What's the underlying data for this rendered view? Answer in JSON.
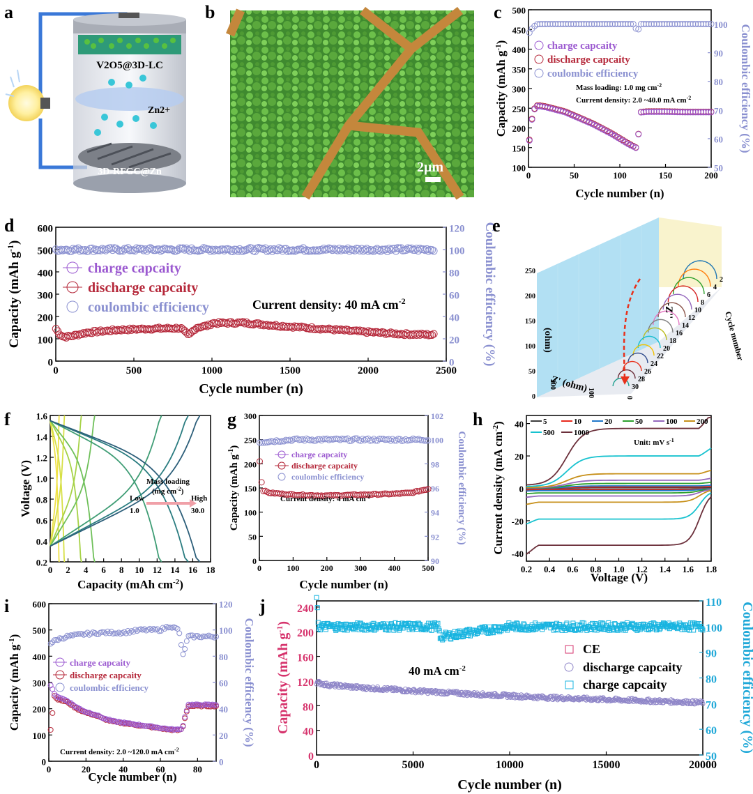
{
  "figure": {
    "panel_labels": [
      "a",
      "b",
      "c",
      "d",
      "e",
      "f",
      "g",
      "h",
      "i",
      "j"
    ]
  },
  "panel_a": {
    "cathode_label": "V2O5@3D-LC",
    "ion_label": "Zn2+",
    "anode_label": "3D-RFGC@Zn"
  },
  "panel_b": {
    "scale_label": "2μm"
  },
  "panel_e": {
    "z2_label": "-Z''",
    "z2_unit": "(ohm)",
    "z1_label": "Z' (ohm)",
    "cycle_label": "Cycle number",
    "ticks_z2": [
      "0",
      "50",
      "100",
      "150",
      "200",
      "250"
    ],
    "ticks_z1": [
      "0",
      "100",
      "200"
    ],
    "ticks_cycle": [
      "2",
      "4",
      "6",
      "8",
      "10",
      "12",
      "14",
      "16",
      "18",
      "20",
      "22",
      "24",
      "26",
      "28",
      "30"
    ]
  },
  "chart_data": [
    {
      "panel": "c",
      "type": "scatter",
      "xlabel": "Cycle number (n)",
      "ylabel": "Capacity (mAh g-1)",
      "ylabel2": "Coulombic efficiency (%)",
      "xlim": [
        0,
        200
      ],
      "ylim": [
        100,
        500
      ],
      "ylim2": [
        50,
        105
      ],
      "x_ticks": [
        "0",
        "50",
        "100",
        "150",
        "200"
      ],
      "y_ticks": [
        "100",
        "150",
        "200",
        "250",
        "300",
        "350",
        "400",
        "450",
        "500"
      ],
      "y2_ticks": [
        "50",
        "60",
        "70",
        "80",
        "90",
        "100"
      ],
      "legend": [
        "charge capcaity",
        "discharge capcaity",
        "coulombic efficiency"
      ],
      "annotations": [
        "Mass loading: 1.0 mg cm-2",
        "Current density: 2.0 ~40.0 mA cm-2"
      ],
      "series": [
        {
          "name": "discharge capcaity",
          "x": [
            1,
            5,
            10,
            15,
            20,
            30,
            40,
            50,
            60,
            70,
            80,
            90,
            100,
            110,
            118,
            120,
            121,
            130,
            150,
            170,
            200
          ],
          "y": [
            170,
            245,
            258,
            256,
            254,
            248,
            242,
            232,
            222,
            212,
            200,
            188,
            174,
            160,
            150,
            148,
            240,
            242,
            242,
            241,
            241
          ]
        },
        {
          "name": "charge capcaity",
          "x": [
            1,
            5,
            10,
            15,
            20,
            30,
            40,
            50,
            60,
            70,
            80,
            90,
            100,
            110,
            118,
            120,
            121,
            130,
            150,
            170,
            200
          ],
          "y": [
            168,
            243,
            256,
            254,
            252,
            246,
            240,
            230,
            220,
            210,
            198,
            186,
            172,
            158,
            149,
            147,
            239,
            241,
            241,
            240,
            240
          ]
        },
        {
          "name": "coulombic efficiency",
          "x": [
            1,
            5,
            10,
            20,
            50,
            80,
            100,
            115,
            120,
            121,
            125,
            150,
            200
          ],
          "y": [
            97,
            99,
            100,
            100,
            100,
            100,
            100,
            100,
            97,
            100,
            100,
            100,
            100
          ]
        }
      ]
    },
    {
      "panel": "d",
      "type": "scatter",
      "xlabel": "Cycle number (n)",
      "ylabel": "Capacity (mAh g-1)",
      "ylabel2": "Coulombic efficiency (%)",
      "xlim": [
        0,
        2500
      ],
      "ylim": [
        0,
        600
      ],
      "ylim2": [
        0,
        120
      ],
      "x_ticks": [
        "0",
        "500",
        "1000",
        "1500",
        "2000",
        "2500"
      ],
      "y_ticks": [
        "0",
        "100",
        "200",
        "300",
        "400",
        "500",
        "600"
      ],
      "y2_ticks": [
        "0",
        "20",
        "40",
        "60",
        "80",
        "100",
        "120"
      ],
      "legend": [
        "charge capcaity",
        "discharge capcaity",
        "coulombic efficiency"
      ],
      "annotations": [
        "Current density: 40 mA cm-2"
      ],
      "series": [
        {
          "name": "discharge capcaity",
          "x": [
            1,
            20,
            50,
            100,
            200,
            400,
            600,
            800,
            850,
            900,
            980,
            1000,
            1200,
            1400,
            1600,
            1800,
            2000,
            2200,
            2420
          ],
          "y": [
            145,
            125,
            108,
            112,
            128,
            140,
            145,
            148,
            115,
            150,
            160,
            170,
            172,
            160,
            150,
            140,
            130,
            122,
            118
          ]
        },
        {
          "name": "coulombic efficiency",
          "x": [
            1,
            500,
            1000,
            1500,
            2000,
            2420
          ],
          "y": [
            100,
            100,
            100,
            100,
            100,
            100
          ]
        }
      ]
    },
    {
      "panel": "f",
      "type": "line",
      "xlabel": "Capacity (mAh cm-2)",
      "ylabel": "Voltage (V)",
      "xlim": [
        0,
        18
      ],
      "ylim": [
        0.2,
        1.6
      ],
      "x_ticks": [
        "0",
        "2",
        "4",
        "6",
        "8",
        "10",
        "12",
        "14",
        "16",
        "18"
      ],
      "y_ticks": [
        "0.2",
        "0.4",
        "0.6",
        "0.8",
        "1.0",
        "1.2",
        "1.4",
        "1.6"
      ],
      "annotations": [
        "Mass loading",
        "(mg cm-2)",
        "Low",
        "1.0",
        "High",
        "30.0"
      ],
      "series": [
        {
          "name": "1.0",
          "capacity": 1.0
        },
        {
          "name": "2",
          "capacity": 1.6
        },
        {
          "name": "3",
          "capacity": 3.5
        },
        {
          "name": "4",
          "capacity": 5.0
        },
        {
          "name": "5",
          "capacity": 12.5
        },
        {
          "name": "6",
          "capacity": 15.5
        },
        {
          "name": "30.0",
          "capacity": 16.8
        }
      ]
    },
    {
      "panel": "g",
      "type": "scatter",
      "xlabel": "Cycle number (n)",
      "ylabel": "Capacity (mAh g-1)",
      "ylabel2": "Coulombic efficiency (%)",
      "xlim": [
        0,
        500
      ],
      "ylim": [
        0,
        300
      ],
      "ylim2": [
        90,
        102
      ],
      "x_ticks": [
        "0",
        "100",
        "200",
        "300",
        "400",
        "500"
      ],
      "y_ticks": [
        "0",
        "50",
        "100",
        "150",
        "200",
        "250",
        "300"
      ],
      "y2_ticks": [
        "90",
        "92",
        "94",
        "96",
        "98",
        "100",
        "102"
      ],
      "legend": [
        "charge capcaity",
        "discharge capcaity",
        "coulombic efficiency"
      ],
      "annotations": [
        "Current density: 4 mA cm-2"
      ],
      "series": [
        {
          "name": "discharge capcaity",
          "x": [
            1,
            5,
            10,
            30,
            100,
            200,
            300,
            400,
            450,
            500
          ],
          "y": [
            205,
            170,
            145,
            140,
            136,
            134,
            136,
            138,
            140,
            148
          ]
        },
        {
          "name": "coulombic efficiency",
          "x": [
            1,
            100,
            200,
            300,
            400,
            500
          ],
          "y": [
            99.8,
            100,
            100,
            100,
            100,
            100
          ]
        }
      ]
    },
    {
      "panel": "h",
      "type": "line",
      "xlabel": "Voltage (V)",
      "ylabel": "Current density (mA cm-2)",
      "xlim": [
        0.2,
        1.8
      ],
      "ylim": [
        -45,
        45
      ],
      "x_ticks": [
        "0.2",
        "0.4",
        "0.6",
        "0.8",
        "1.0",
        "1.2",
        "1.4",
        "1.6",
        "1.8"
      ],
      "y_ticks": [
        "-40",
        "-20",
        "0",
        "20",
        "40"
      ],
      "legend_unit": "Unit: mV s-1",
      "series": [
        {
          "name": "5",
          "color": "#3c3c3c",
          "scale": 0.5
        },
        {
          "name": "10",
          "color": "#e8291c",
          "scale": 0.9
        },
        {
          "name": "20",
          "color": "#1f77c9",
          "scale": 1.5
        },
        {
          "name": "50",
          "color": "#2ca02c",
          "scale": 3
        },
        {
          "name": "100",
          "color": "#9467bd",
          "scale": 5
        },
        {
          "name": "200",
          "color": "#c7901a",
          "scale": 9
        },
        {
          "name": "500",
          "color": "#17c2cf",
          "scale": 20
        },
        {
          "name": "1000",
          "color": "#6b2f3a",
          "scale": 37
        }
      ]
    },
    {
      "panel": "i",
      "type": "scatter",
      "xlabel": "Cycle number (n)",
      "ylabel": "Capacity (mAh g-1)",
      "ylabel2": "Coulombic efficiency (%)",
      "xlim": [
        0,
        90
      ],
      "ylim": [
        0,
        600
      ],
      "ylim2": [
        0,
        120
      ],
      "x_ticks": [
        "0",
        "20",
        "40",
        "60",
        "80"
      ],
      "y_ticks": [
        "0",
        "100",
        "200",
        "300",
        "400",
        "500",
        "600"
      ],
      "y2_ticks": [
        "0",
        "20",
        "40",
        "60",
        "80",
        "100",
        "120"
      ],
      "legend": [
        "charge capcaity",
        "discharge capcaity",
        "coulombic efficiency"
      ],
      "annotations": [
        "Current density: 2.0 ~120.0 mA cm-2"
      ],
      "series": [
        {
          "name": "discharge capcaity",
          "x": [
            1,
            3,
            5,
            10,
            15,
            20,
            25,
            30,
            35,
            40,
            45,
            50,
            55,
            60,
            65,
            70,
            72,
            73,
            75,
            80,
            85,
            90
          ],
          "y": [
            120,
            250,
            235,
            225,
            200,
            185,
            175,
            160,
            150,
            145,
            140,
            135,
            130,
            125,
            120,
            118,
            125,
            160,
            210,
            210,
            210,
            210
          ]
        },
        {
          "name": "charge capcaity",
          "x": [
            1,
            3,
            5,
            10,
            15,
            20,
            25,
            30,
            35,
            40,
            45,
            50,
            55,
            60,
            65,
            70,
            72,
            73,
            75,
            80,
            85,
            90
          ],
          "y": [
            290,
            255,
            245,
            230,
            205,
            188,
            178,
            162,
            152,
            147,
            142,
            137,
            132,
            127,
            122,
            120,
            127,
            165,
            215,
            215,
            215,
            215
          ]
        },
        {
          "name": "coulombic efficiency",
          "x": [
            1,
            5,
            10,
            20,
            30,
            40,
            50,
            60,
            65,
            70,
            72,
            75,
            80,
            90
          ],
          "y": [
            90,
            93,
            95,
            97,
            98,
            98,
            100,
            100,
            103,
            100,
            80,
            95,
            95,
            95
          ]
        }
      ]
    },
    {
      "panel": "j",
      "type": "scatter",
      "xlabel": "Cycle number (n)",
      "ylabel": "Capacity (mAh g-1)",
      "ylabel2": "Coulombic efficiency (%)",
      "xlim": [
        0,
        20000
      ],
      "ylim": [
        0,
        250
      ],
      "ylim2": [
        50,
        110
      ],
      "x_ticks": [
        "0",
        "5000",
        "10000",
        "15000",
        "20000"
      ],
      "y_ticks": [
        "0",
        "40",
        "80",
        "120",
        "160",
        "200",
        "240"
      ],
      "y2_ticks": [
        "50",
        "60",
        "70",
        "80",
        "90",
        "100",
        "110"
      ],
      "legend": [
        "CE",
        "discharge capcaity",
        "charge capcaity"
      ],
      "annotations": [
        "40 mA cm-2"
      ],
      "series": [
        {
          "name": "discharge capcaity",
          "x": [
            1,
            500,
            2000,
            5000,
            8000,
            10000,
            12000,
            15000,
            18000,
            20000
          ],
          "y": [
            118,
            114,
            110,
            104,
            99,
            96,
            93,
            90,
            87,
            85
          ]
        },
        {
          "name": "CE",
          "x": [
            1,
            100,
            5000,
            6300,
            6400,
            10000,
            15000,
            20000
          ],
          "y": [
            110,
            100,
            100,
            100,
            96,
            100,
            100,
            100
          ]
        }
      ]
    }
  ],
  "text": {
    "c": {
      "xlabel": "Cycle number (n)",
      "ylabel": "Capacity (mAh g",
      "ylabel_sup": "-1",
      "ylabel_end": ")",
      "y2label": "Coulombic efficiency (%)",
      "leg1": "charge capcaity",
      "leg2": "discharge capcaity",
      "leg3": "coulombic efficiency",
      "ann1": "Mass loading: 1.0 mg cm",
      "ann1_sup": "-2",
      "ann2": "Current density: 2.0 ~40.0 mA cm",
      "ann2_sup": "-2"
    },
    "d": {
      "xlabel": "Cycle number (n)",
      "ylabel": "Capacity (mAh g",
      "ylabel_sup": "-1",
      "ylabel_end": ")",
      "y2label": "Coulombic efficiency (%)",
      "leg1": "charge capcaity",
      "leg2": "discharge capcaity",
      "leg3": "coulombic efficiency",
      "ann1": "Current density: 40 mA cm",
      "ann1_sup": "-2"
    },
    "f": {
      "xlabel": "Capacity (mAh cm",
      "xlabel_sup": "-2",
      "xlabel_end": ")",
      "ylabel": "Voltage (V)",
      "ann_title": "Mass loading",
      "ann_unit": "(mg cm",
      "ann_unit_sup": "-2",
      "ann_unit_end": ")",
      "low": "Low",
      "low_val": "1.0",
      "high": "High",
      "high_val": "30.0"
    },
    "g": {
      "xlabel": "Cycle number (n)",
      "ylabel": "Capacity (mAh g",
      "ylabel_sup": "-1",
      "ylabel_end": ")",
      "y2label": "Coulombic efficiency (%)",
      "leg1": "charge capcaity",
      "leg2": "discharge capcaity",
      "leg3": "coulombic efficiency",
      "ann1": "Current density: 4 mA cm",
      "ann1_sup": "-2"
    },
    "h": {
      "xlabel": "Voltage (V)",
      "ylabel": "Current density (mA cm",
      "ylabel_sup": "-2",
      "ylabel_end": ")",
      "unit": "Unit: mV s",
      "unit_sup": "-1"
    },
    "i": {
      "xlabel": "Cycle number (n)",
      "ylabel": "Capacity (mAh g",
      "ylabel_sup": "-1",
      "ylabel_end": ")",
      "y2label": "Coulombic efficiency (%)",
      "leg1": "charge capcaity",
      "leg2": "discharge capcaity",
      "leg3": "coulombic efficiency",
      "ann1": "Current density: 2.0 ~120.0 mA cm",
      "ann1_sup": "-2"
    },
    "j": {
      "xlabel": "Cycle number (n)",
      "ylabel": "Capacity (mAh g",
      "ylabel_sup": "-1",
      "ylabel_end": ")",
      "y2label": "Coulombic efficiency (%)",
      "leg1": "CE",
      "leg2": "discharge capcaity",
      "leg3": "charge capcaity",
      "ann1": "40 mA cm",
      "ann1_sup": "-2"
    }
  },
  "colors": {
    "discharge": "#b5283a",
    "charge": "#9b59d0",
    "ce": "#8a90d0",
    "j_left": "#d6336c",
    "j_right": "#1fa8d8",
    "j_ce": "#18b4e0",
    "j_cap": "#8f86c8"
  }
}
